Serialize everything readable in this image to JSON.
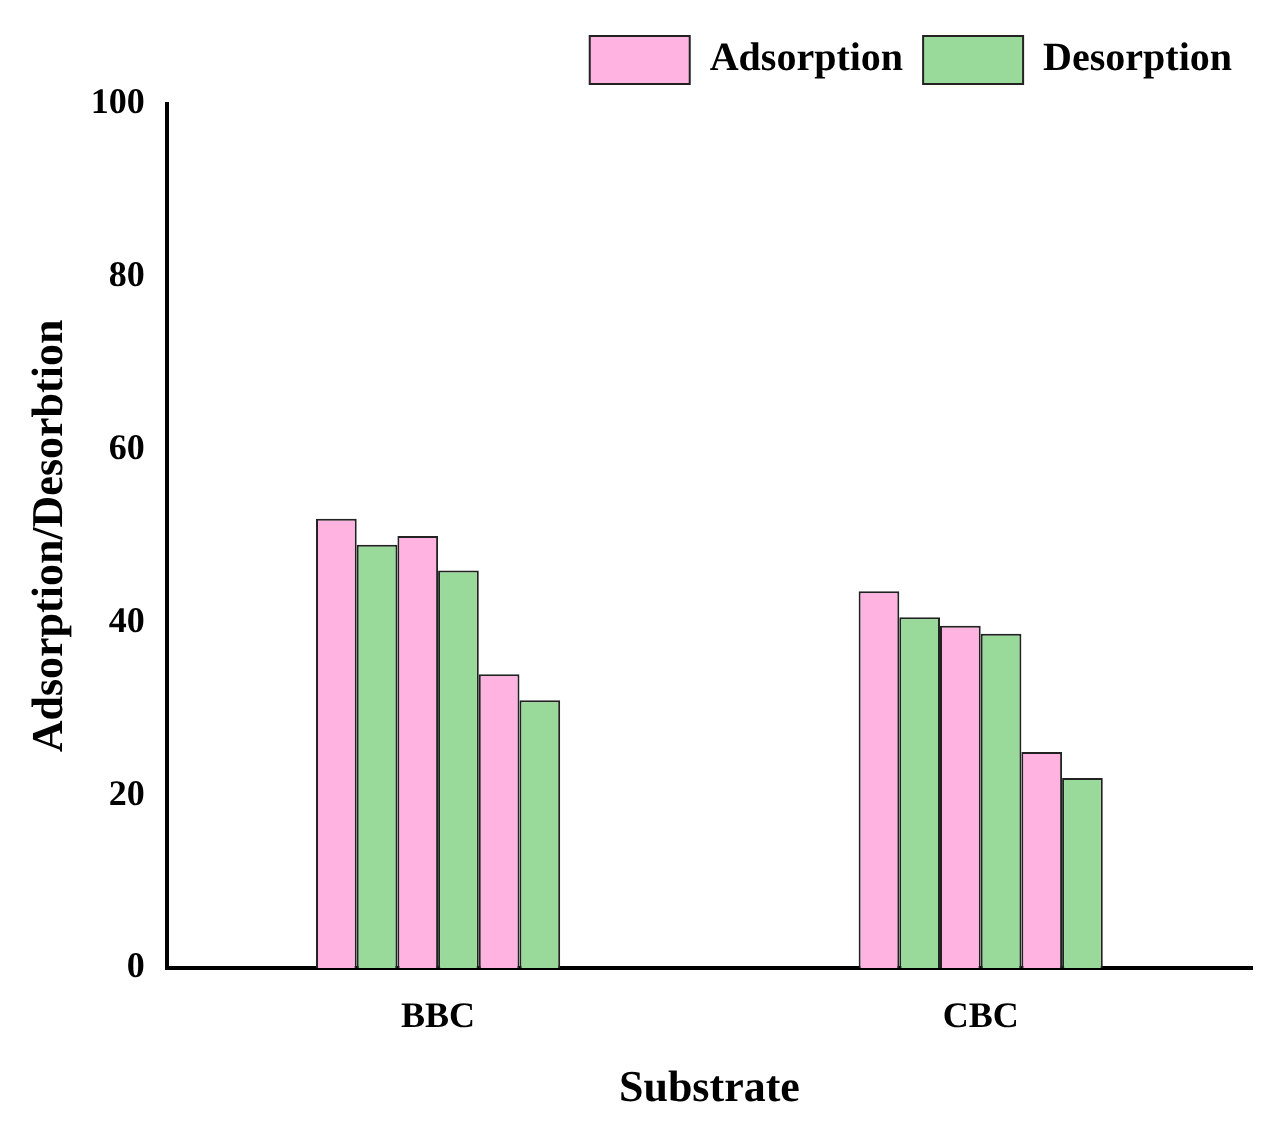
{
  "chart_data": {
    "type": "bar",
    "xlabel": "Substrate",
    "ylabel": "Adsorption/Desorbtion",
    "categories": [
      "BBC",
      "CBC"
    ],
    "series": [
      {
        "name": "Adsorption",
        "color": "#ffb3e0",
        "values": [
          52,
          43.6
        ]
      },
      {
        "name": "Desorption",
        "color": "#99d99a",
        "values": [
          49,
          40.6
        ]
      },
      {
        "color": "#ffb3e0",
        "values": [
          50,
          39.6
        ]
      },
      {
        "color": "#99d99a",
        "values": [
          46,
          38.7
        ]
      },
      {
        "color": "#ffb3e0",
        "values": [
          34,
          25
        ]
      },
      {
        "color": "#99d99a",
        "values": [
          31,
          22
        ]
      }
    ],
    "ylim": [
      0,
      100
    ],
    "yticks": [
      0,
      20,
      40,
      60,
      80,
      100
    ],
    "grid": false,
    "legend": "top right"
  }
}
